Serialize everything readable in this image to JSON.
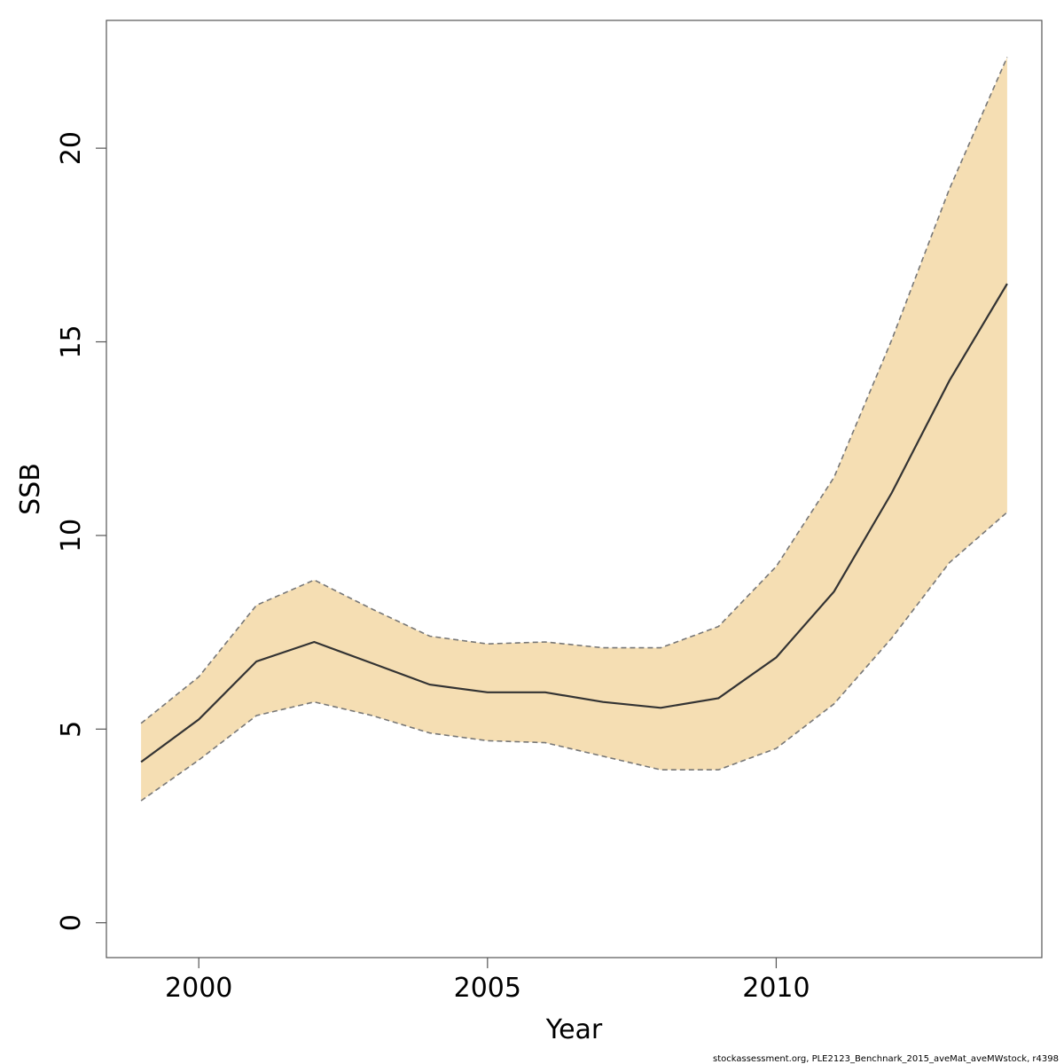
{
  "chart_data": {
    "type": "area",
    "title": "",
    "xlabel": "Year",
    "ylabel": "SSB",
    "xlim": [
      1998.4,
      2014.6
    ],
    "ylim": [
      -0.9,
      23.3
    ],
    "xticks": [
      2000,
      2005,
      2010
    ],
    "yticks": [
      0,
      5,
      10,
      15,
      20
    ],
    "grid": false,
    "x": [
      1999,
      2000,
      2001,
      2002,
      2003,
      2004,
      2005,
      2006,
      2007,
      2008,
      2009,
      2010,
      2011,
      2012,
      2013,
      2014
    ],
    "series": [
      {
        "values": [
          4.15,
          5.25,
          6.75,
          7.25,
          6.7,
          6.15,
          5.95,
          5.95,
          5.7,
          5.55,
          5.8,
          6.85,
          8.55,
          11.1,
          14.0,
          16.5
        ]
      },
      {
        "values": [
          3.15,
          4.2,
          5.35,
          5.7,
          5.35,
          4.9,
          4.7,
          4.65,
          4.3,
          3.95,
          3.95,
          4.5,
          5.65,
          7.35,
          9.3,
          10.6
        ]
      },
      {
        "values": [
          5.15,
          6.35,
          8.2,
          8.85,
          8.1,
          7.4,
          7.2,
          7.25,
          7.1,
          7.1,
          7.65,
          9.2,
          11.5,
          15.05,
          18.95,
          22.35
        ]
      }
    ],
    "colors": {
      "band_fill": "#f5deb3",
      "median_line": "#333333",
      "bound_line": "#777777",
      "axis": "#555555"
    },
    "credit": "stockassessment.org, PLE2123_Benchnark_2015_aveMat_aveMWstock, r4398"
  }
}
